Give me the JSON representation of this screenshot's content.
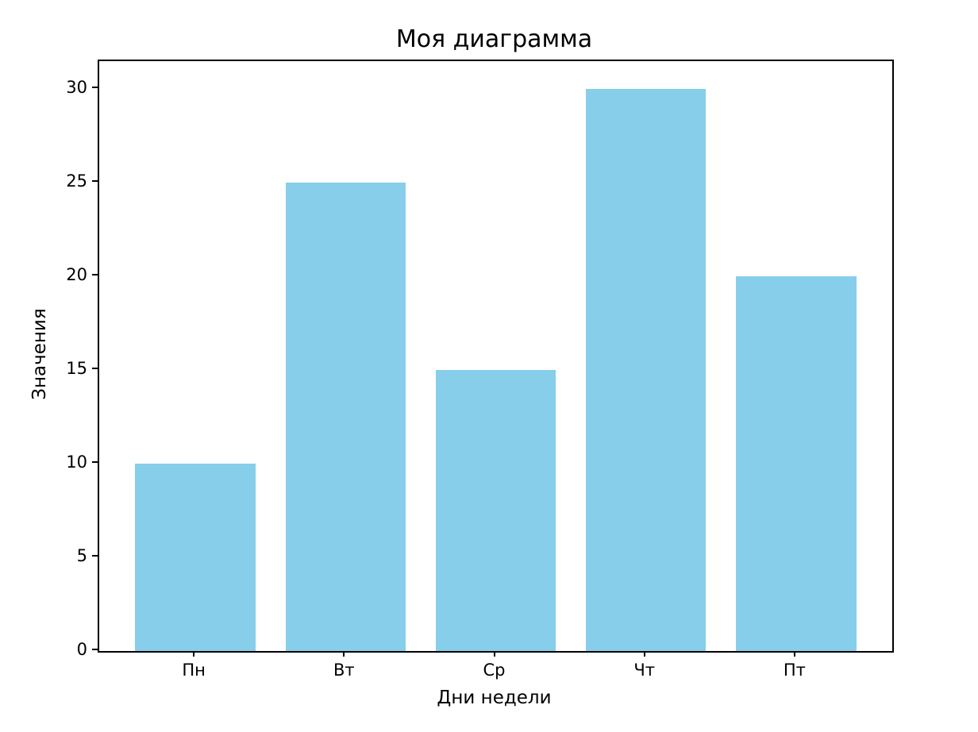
{
  "chart_data": {
    "type": "bar",
    "title": "Моя диаграмма",
    "xlabel": "Дни недели",
    "ylabel": "Значения",
    "categories": [
      "Пн",
      "Вт",
      "Ср",
      "Чт",
      "Пт"
    ],
    "values": [
      10,
      25,
      15,
      30,
      20
    ],
    "yticks": [
      0,
      5,
      10,
      15,
      20,
      25,
      30
    ],
    "ylim": [
      0,
      31.5
    ],
    "xlim": [
      -0.64,
      4.64
    ],
    "bar_width": 0.8,
    "bar_color": "#87CEEB",
    "axis_color": "#000000",
    "background": "#FFFFFF",
    "grid": false,
    "legend": false
  }
}
